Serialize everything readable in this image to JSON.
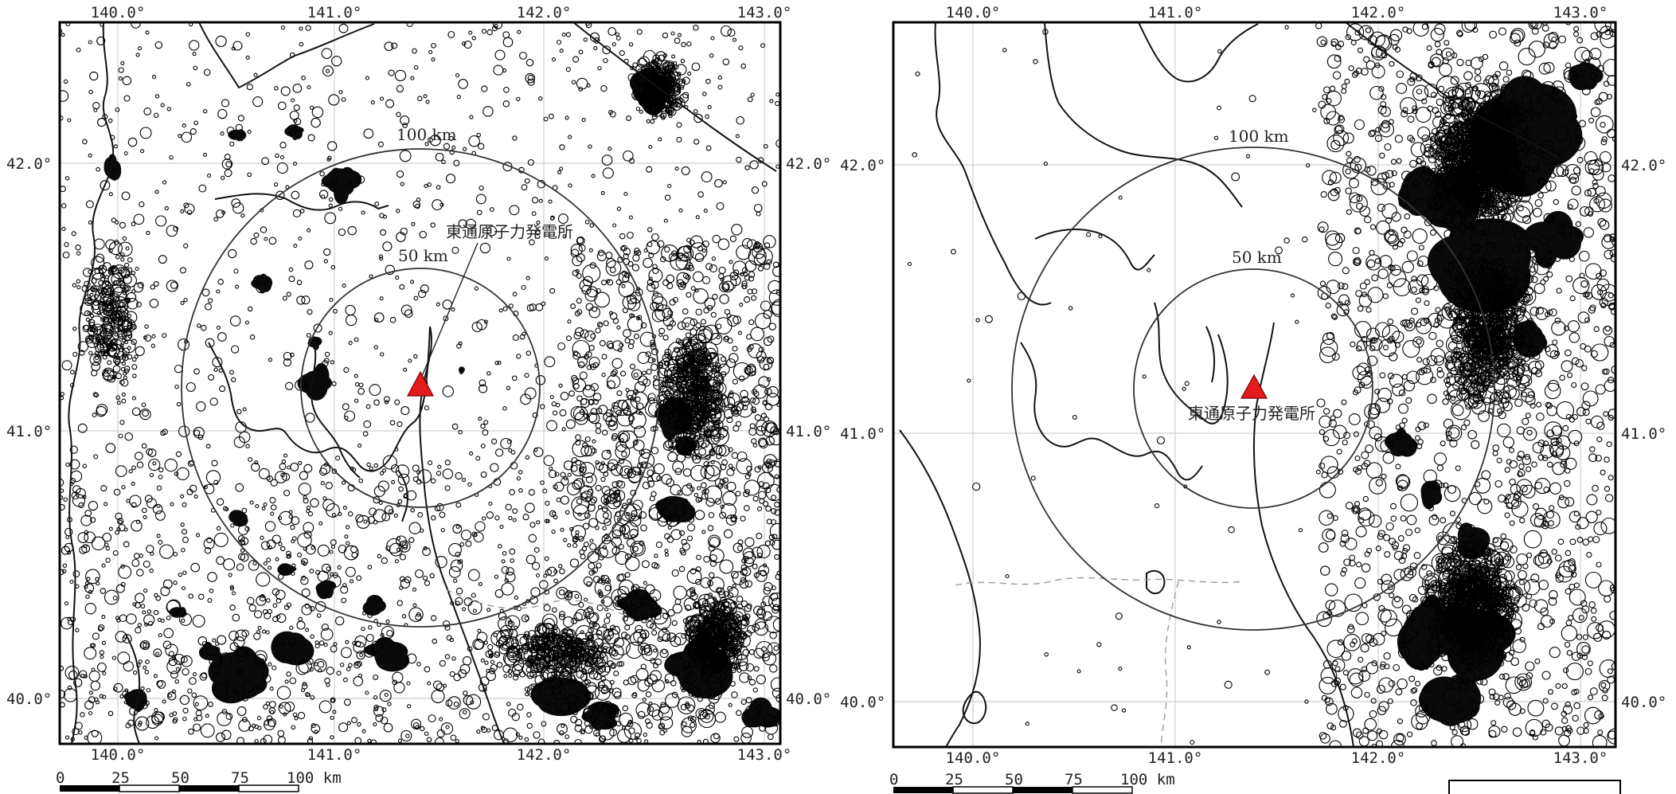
{
  "maps": [
    {
      "id": "left",
      "lon_labels": [
        "140.0°",
        "141.0°",
        "142.0°",
        "143.0°"
      ],
      "lat_labels": [
        "42.0°",
        "41.0°",
        "40.0°"
      ],
      "ring_labels": [
        "100 km",
        "50 km"
      ],
      "site_label": "東通原子力発電所",
      "scale_labels": [
        "0",
        "25",
        "50",
        "75",
        "100 km"
      ],
      "marker_color": "#e31b1b"
    },
    {
      "id": "right",
      "lon_labels": [
        "140.0°",
        "141.0°",
        "142.0°",
        "143.0°"
      ],
      "lat_labels": [
        "42.0°",
        "41.0°",
        "40.0°"
      ],
      "ring_labels": [
        "100 km",
        "50 km"
      ],
      "site_label": "東通原子力発電所",
      "scale_labels": [
        "0",
        "25",
        "50",
        "75",
        "100 km"
      ],
      "marker_color": "#e31b1b"
    }
  ]
}
